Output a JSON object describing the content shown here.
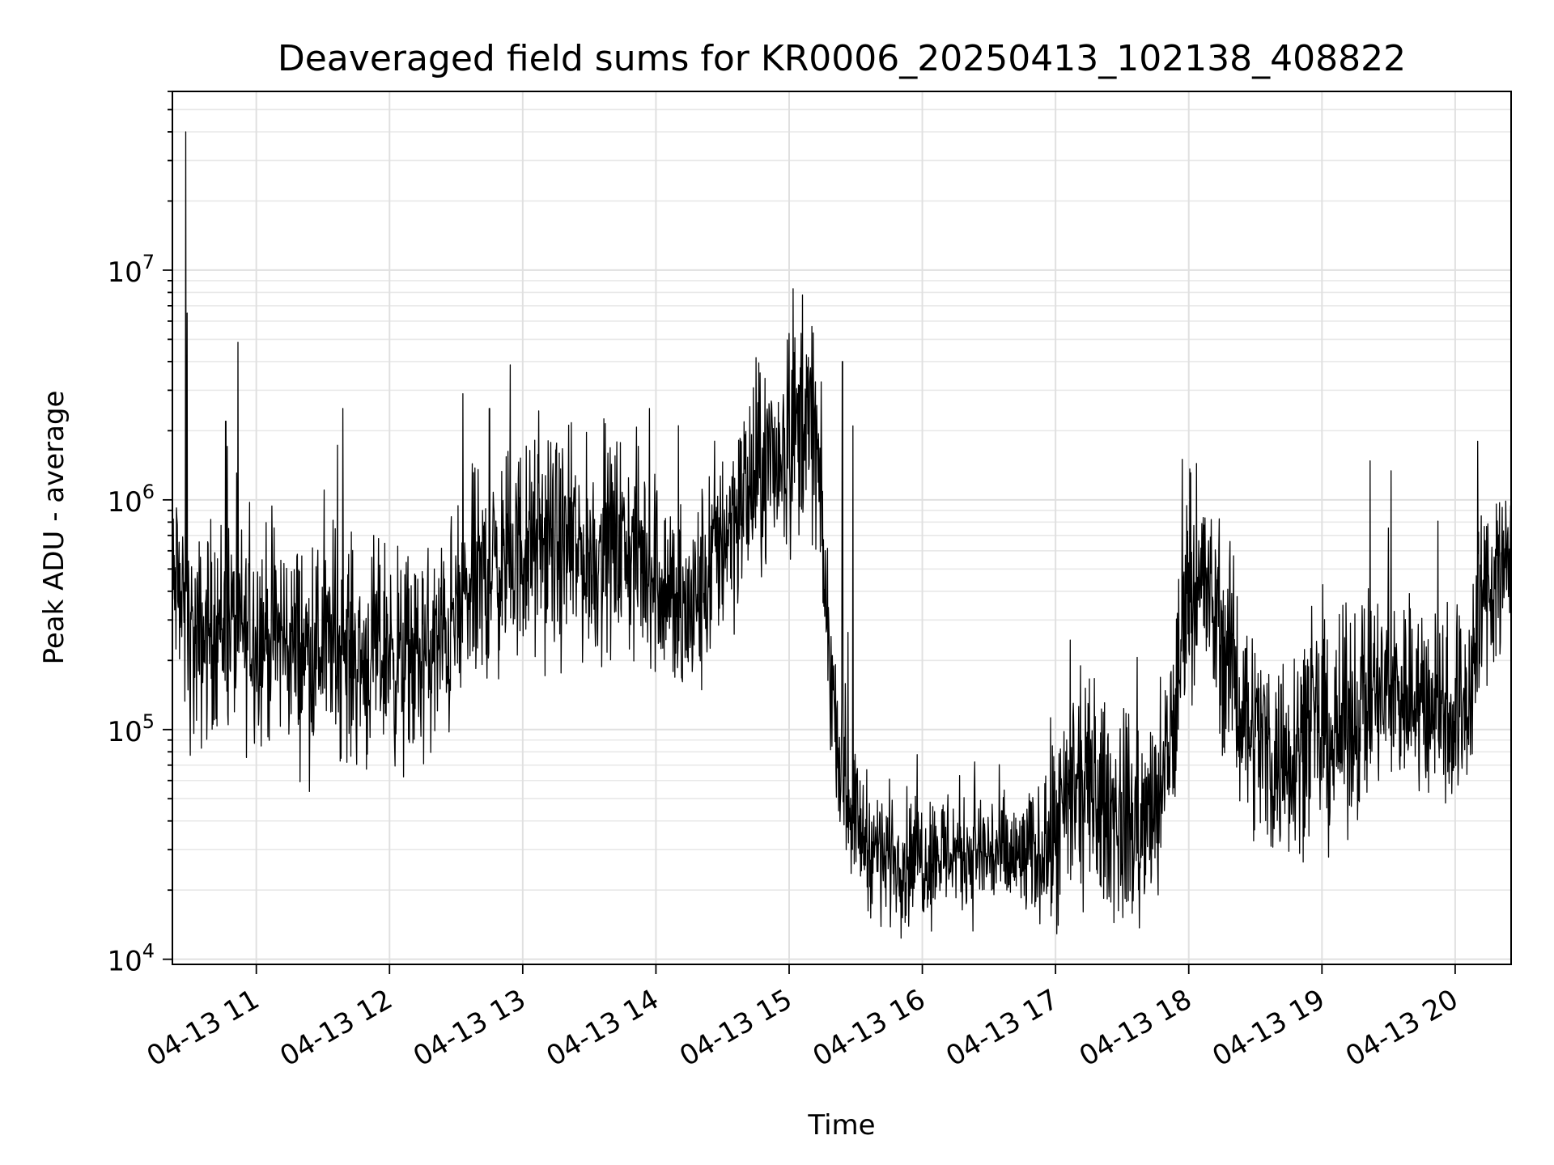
{
  "chart_data": {
    "type": "line",
    "title": "Deaveraged field sums for KR0006_20250413_102138_408822",
    "xlabel": "Time",
    "ylabel": "Peak ADU - average",
    "x_tick_labels": [
      "04-13 11",
      "04-13 12",
      "04-13 13",
      "04-13 14",
      "04-13 15",
      "04-13 16",
      "04-13 17",
      "04-13 18",
      "04-13 19",
      "04-13 20"
    ],
    "x_tick_hours": [
      11,
      12,
      13,
      14,
      15,
      16,
      17,
      18,
      19,
      20
    ],
    "xlim_hours": [
      10.37,
      20.42
    ],
    "y_scale": "log",
    "ylim": [
      9500,
      60000000
    ],
    "y_tick_values": [
      10000,
      100000,
      1000000,
      10000000
    ],
    "y_tick_exponents": [
      "4",
      "5",
      "6",
      "7"
    ],
    "y_tick_base": "10",
    "grid": "major and minor",
    "line_color": "#000000",
    "series": [
      {
        "x_hours": [
          10.37,
          10.4,
          10.45,
          10.5,
          10.55,
          10.6,
          10.7,
          10.8,
          10.9,
          11.0,
          11.1,
          11.2,
          11.3,
          11.4,
          11.5,
          11.6,
          11.7,
          11.8,
          11.9,
          12.0,
          12.1,
          12.2,
          12.3,
          12.4,
          12.5,
          12.6,
          12.7,
          12.8,
          12.9,
          13.0,
          13.1,
          13.2,
          13.3,
          13.4,
          13.5,
          13.6,
          13.7,
          13.8,
          13.9,
          14.0,
          14.1,
          14.2,
          14.3,
          14.4,
          14.5,
          14.6,
          14.7,
          14.8,
          14.9,
          15.0,
          15.1,
          15.2,
          15.3,
          15.4,
          15.5,
          15.6,
          15.7,
          15.8,
          15.9,
          16.0,
          16.1,
          16.2,
          16.3,
          16.4,
          16.5,
          16.6,
          16.7,
          16.8,
          16.9,
          17.0,
          17.1,
          17.2,
          17.3,
          17.4,
          17.5,
          17.6,
          17.7,
          17.8,
          17.9,
          18.0,
          18.1,
          18.2,
          18.3,
          18.4,
          18.5,
          18.6,
          18.7,
          18.8,
          18.9,
          19.0,
          19.1,
          19.2,
          19.3,
          19.4,
          19.5,
          19.6,
          19.7,
          19.8,
          19.9,
          20.0,
          20.1,
          20.2,
          20.3,
          20.42
        ],
        "y_typical": [
          350000,
          450000,
          300000,
          250000,
          220000,
          250000,
          300000,
          280000,
          260000,
          270000,
          260000,
          250000,
          230000,
          220000,
          240000,
          230000,
          220000,
          200000,
          210000,
          230000,
          190000,
          200000,
          210000,
          240000,
          300000,
          400000,
          450000,
          500000,
          550000,
          600000,
          600000,
          650000,
          600000,
          600000,
          550000,
          600000,
          650000,
          600000,
          550000,
          500000,
          400000,
          300000,
          350000,
          500000,
          700000,
          900000,
          1100000,
          1300000,
          1500000,
          1800000,
          2200000,
          2000000,
          200000,
          60000,
          40000,
          32000,
          29000,
          28000,
          27000,
          28000,
          29000,
          30000,
          30000,
          29000,
          29000,
          28000,
          27000,
          28000,
          29000,
          33000,
          45000,
          55000,
          50000,
          45000,
          40000,
          38000,
          40000,
          50000,
          120000,
          500000,
          450000,
          300000,
          200000,
          130000,
          100000,
          80000,
          70000,
          90000,
          100000,
          95000,
          90000,
          110000,
          130000,
          140000,
          140000,
          150000,
          140000,
          130000,
          130000,
          120000,
          140000,
          350000,
          500000,
          550000
        ]
      }
    ]
  }
}
